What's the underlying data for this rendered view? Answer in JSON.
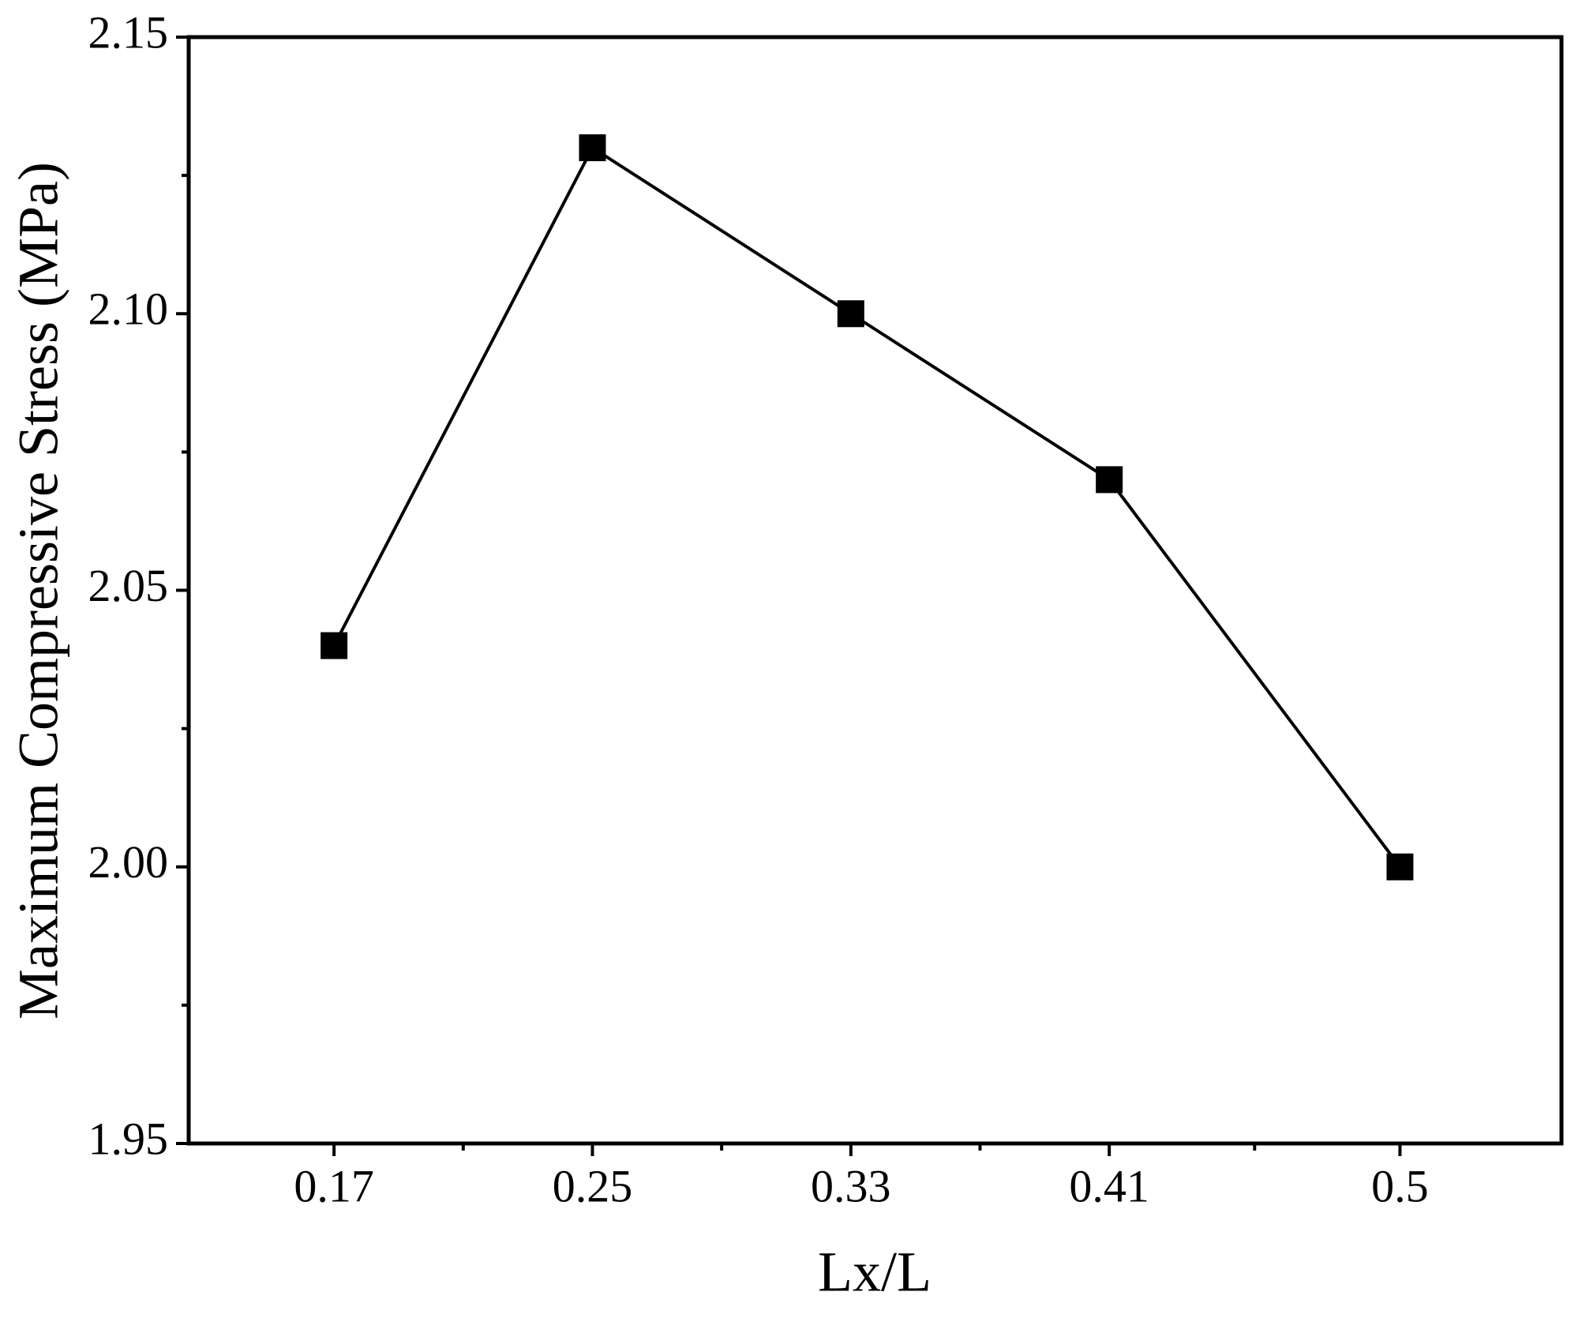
{
  "chart_data": {
    "type": "line",
    "x_label": "Lx/L",
    "y_label": "Maximum Compressive Stress (MPa)",
    "x": [
      0.17,
      0.25,
      0.33,
      0.41,
      0.5
    ],
    "series": [
      {
        "color": "#000000",
        "marker": "square",
        "values": [
          2.04,
          2.13,
          2.1,
          2.07,
          2.0
        ]
      }
    ],
    "xlim": [
      0.125,
      0.55
    ],
    "xticks": [
      0.17,
      0.25,
      0.33,
      0.41,
      0.5
    ],
    "xminorticks": [
      0.21,
      0.29,
      0.37,
      0.455
    ],
    "ylim": [
      1.95,
      2.15
    ],
    "yticks": [
      1.95,
      {
        "value": 2.0,
        "label": "2.00"
      },
      2.05,
      {
        "value": 2.1,
        "label": "2.10"
      },
      2.15
    ],
    "yminorticks": [
      1.975,
      2.025,
      2.075,
      2.125
    ],
    "grid": false
  }
}
